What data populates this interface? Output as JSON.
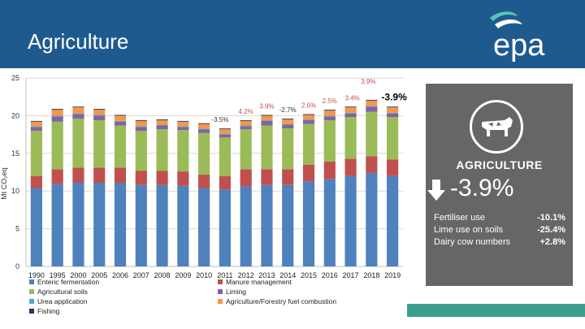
{
  "header": {
    "title": "Agriculture",
    "logo_text": "epa"
  },
  "colors": {
    "header_bg": "#1f5a8f",
    "enteric": "#4f81bd",
    "manure": "#c0504d",
    "soils": "#9bbb59",
    "liming": "#8064a2",
    "urea": "#4bacc6",
    "fuel": "#f79646",
    "fishing": "#1f3864",
    "panel_bg": "#666666",
    "teal": "#3c9e8c",
    "annotation_red": "#c0504d"
  },
  "chart_data": {
    "type": "bar",
    "stacked": true,
    "ylabel": "Mt CO₂eq",
    "ylim": [
      0,
      25
    ],
    "yticks": [
      "0",
      "5",
      "10",
      "15",
      "20",
      "25"
    ],
    "categories": [
      "1990",
      "1995",
      "2000",
      "2005",
      "2006",
      "2007",
      "2008",
      "2009",
      "2010",
      "2011",
      "2012",
      "2013",
      "2014",
      "2015",
      "2016",
      "2017",
      "2018",
      "2019"
    ],
    "series": [
      {
        "name": "Enteric fermentation",
        "color": "#4f81bd",
        "values": [
          10.4,
          10.9,
          11.1,
          11.1,
          11.1,
          10.8,
          10.8,
          10.7,
          10.4,
          10.2,
          10.6,
          10.8,
          10.8,
          11.3,
          11.6,
          12.0,
          12.4,
          12.0
        ]
      },
      {
        "name": "Manure management",
        "color": "#c0504d",
        "values": [
          1.6,
          2.0,
          2.0,
          2.0,
          2.0,
          1.9,
          1.9,
          1.9,
          1.8,
          1.8,
          2.3,
          2.1,
          2.1,
          2.2,
          2.3,
          2.3,
          2.2,
          2.2
        ]
      },
      {
        "name": "Agricultural soils",
        "color": "#9bbb59",
        "values": [
          6.0,
          6.3,
          6.5,
          6.3,
          5.6,
          5.3,
          5.5,
          5.5,
          5.5,
          5.1,
          5.3,
          5.8,
          5.4,
          5.4,
          5.5,
          5.5,
          5.9,
          5.6
        ]
      },
      {
        "name": "Liming",
        "color": "#8064a2",
        "values": [
          0.5,
          0.7,
          0.6,
          0.6,
          0.5,
          0.5,
          0.5,
          0.4,
          0.5,
          0.4,
          0.4,
          0.6,
          0.5,
          0.5,
          0.5,
          0.5,
          0.7,
          0.5
        ]
      },
      {
        "name": "Urea application",
        "color": "#4bacc6",
        "values": [
          0.1,
          0.1,
          0.1,
          0.1,
          0.1,
          0.1,
          0.1,
          0.1,
          0.1,
          0.1,
          0.1,
          0.1,
          0.1,
          0.1,
          0.1,
          0.1,
          0.1,
          0.1
        ]
      },
      {
        "name": "Agriculture/Forestry fuel combustion",
        "color": "#f79646",
        "values": [
          0.6,
          0.8,
          0.8,
          0.7,
          0.7,
          0.7,
          0.6,
          0.6,
          0.6,
          0.6,
          0.6,
          0.6,
          0.6,
          0.6,
          0.7,
          0.7,
          0.7,
          0.7
        ]
      },
      {
        "name": "Fishing",
        "color": "#1f3864",
        "values": [
          0.1,
          0.1,
          0.1,
          0.1,
          0.1,
          0.1,
          0.1,
          0.1,
          0.1,
          0.1,
          0.1,
          0.1,
          0.1,
          0.1,
          0.1,
          0.1,
          0.1,
          0.1
        ]
      }
    ],
    "annotations": [
      {
        "text": "-3.5%",
        "year": "2011",
        "color": "#333333"
      },
      {
        "text": "4.2%",
        "year": "2012",
        "color": "#c0504d"
      },
      {
        "text": "3.9%",
        "year": "2013",
        "color": "#c0504d"
      },
      {
        "text": "-2.7%",
        "year": "2014",
        "color": "#333333"
      },
      {
        "text": "2.6%",
        "year": "2015",
        "color": "#c0504d"
      },
      {
        "text": "2.5%",
        "year": "2016",
        "color": "#c0504d"
      },
      {
        "text": "3.4%",
        "year": "2017",
        "color": "#c0504d"
      },
      {
        "text": "3.9%",
        "year": "2018",
        "color": "#c0504d"
      },
      {
        "text": "-3.9%",
        "year": "2019",
        "color": "#000000"
      }
    ],
    "legend": [
      "Enteric fermentation",
      "Manure management",
      "Agricultural soils",
      "Liming",
      "Urea application",
      "Agriculture/Forestry fuel combustion",
      "Fishing"
    ]
  },
  "panel": {
    "title": "AGRICULTURE",
    "change": "-3.9%",
    "factors": [
      {
        "label": "Fertiliser use",
        "value": "-10.1%"
      },
      {
        "label": "Lime use on soils",
        "value": "-25.4%"
      },
      {
        "label": "Dairy cow numbers",
        "value": "+2.8%"
      }
    ]
  }
}
